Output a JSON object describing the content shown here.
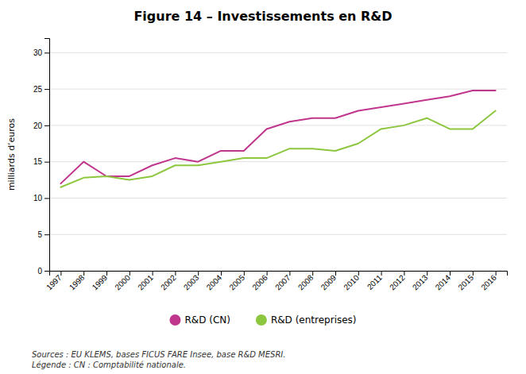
{
  "chart_data": {
    "type": "line",
    "title": "Figure 14 – Investissements en R&D",
    "y_label": "milliards d’euros",
    "x": [
      1997,
      1998,
      1999,
      2000,
      2001,
      2002,
      2003,
      2004,
      2005,
      2006,
      2007,
      2008,
      2009,
      2010,
      2011,
      2012,
      2013,
      2014,
      2015,
      2016
    ],
    "series": [
      {
        "name": "R&D (CN)",
        "color": "#c0368c",
        "values": [
          12.0,
          15.0,
          13.0,
          13.0,
          14.5,
          15.5,
          15.0,
          16.5,
          16.5,
          19.5,
          20.5,
          21.0,
          21.0,
          22.0,
          22.5,
          23.0,
          23.5,
          24.0,
          24.8,
          24.8
        ]
      },
      {
        "name": "R&D (entreprises)",
        "color": "#8dc63f",
        "values": [
          11.5,
          12.8,
          13.0,
          12.5,
          13.0,
          14.5,
          14.5,
          15.0,
          15.5,
          15.5,
          16.8,
          16.8,
          16.5,
          17.5,
          19.5,
          20.0,
          21.0,
          19.5,
          19.5,
          22.0
        ]
      }
    ],
    "xlim": [
      1996.5,
      2016.5
    ],
    "xticks": [
      1997,
      1998,
      1999,
      2000,
      2001,
      2002,
      2003,
      2004,
      2005,
      2006,
      2007,
      2008,
      2009,
      2010,
      2011,
      2012,
      2013,
      2014,
      2015,
      2016
    ],
    "ylim": [
      0,
      32
    ],
    "yticks": [
      0,
      5,
      10,
      15,
      20,
      25,
      30
    ],
    "grid": true,
    "legend": "bottom",
    "annotations": [
      "Sources : EU KLEMS, bases FICUS FARE Insee, base R&D MESRI.",
      "Légende : CN : Comptabilité nationale."
    ]
  }
}
